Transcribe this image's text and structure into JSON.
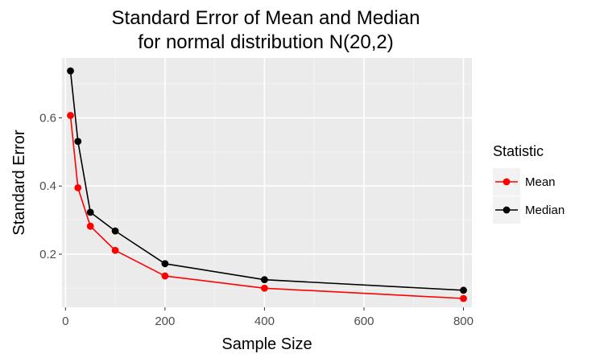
{
  "chart_data": {
    "type": "line",
    "title": [
      "Standard Error of Mean and Median",
      "for normal distribution N(20,2)"
    ],
    "xlabel": "Sample Size",
    "ylabel": "Standard Error",
    "xlim": [
      -7,
      817
    ],
    "ylim": [
      0.044,
      0.776
    ],
    "x_ticks": [
      0,
      200,
      400,
      600,
      800
    ],
    "x_tick_labels": [
      "0",
      "200",
      "400",
      "600",
      "800"
    ],
    "y_ticks": [
      0.2,
      0.4,
      0.6
    ],
    "y_tick_labels": [
      "0.2",
      "0.4",
      "0.6"
    ],
    "grid": true,
    "legend": {
      "title": "Statistic",
      "position": "right"
    },
    "x": [
      10,
      25,
      50,
      100,
      200,
      400,
      800
    ],
    "series": [
      {
        "name": "Mean",
        "color": "#ff0000",
        "values": [
          0.607,
          0.395,
          0.282,
          0.211,
          0.136,
          0.1,
          0.07
        ]
      },
      {
        "name": "Median",
        "color": "#000000",
        "values": [
          0.738,
          0.531,
          0.323,
          0.268,
          0.172,
          0.125,
          0.094
        ]
      }
    ]
  }
}
